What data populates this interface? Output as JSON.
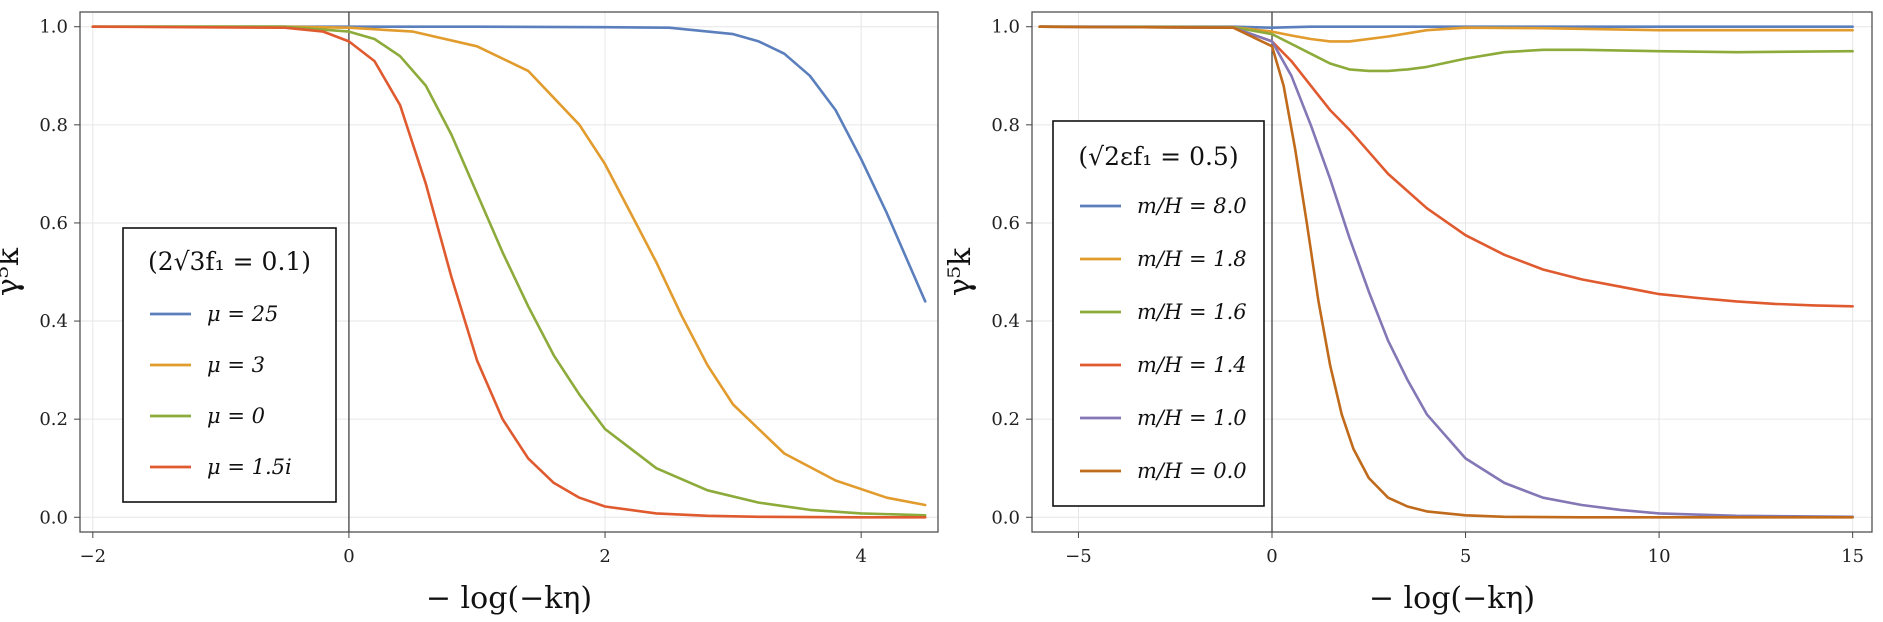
{
  "colors": {
    "blue": "#5b7fbd",
    "orange": "#e29b2d",
    "green": "#8cab3a",
    "red": "#e05a2f",
    "purple": "#8477b5",
    "brown": "#c06a1b",
    "grid": "#e6e6e6",
    "frame": "#444444"
  },
  "chart_data": [
    {
      "type": "line",
      "xlabel": "− log(−kη)",
      "ylabel": "γ⁵k",
      "xlim": [
        -2.1,
        4.6
      ],
      "ylim": [
        -0.03,
        1.03
      ],
      "xticks": [
        -2,
        0,
        2,
        4
      ],
      "xtick_labels": [
        "−2",
        "0",
        "2",
        "4"
      ],
      "yticks": [
        0.0,
        0.2,
        0.4,
        0.6,
        0.8,
        1.0
      ],
      "ytick_labels": [
        "0.0",
        "0.2",
        "0.4",
        "0.6",
        "0.8",
        "1.0"
      ],
      "vline_x": 0,
      "grid": true,
      "legend_title": "(2√3f₁ = 0.1)",
      "legend_position": "lower-left",
      "series": [
        {
          "name": "μ = 25",
          "color": "blue",
          "x": [
            -2,
            0,
            1,
            2,
            2.5,
            3,
            3.2,
            3.4,
            3.6,
            3.8,
            4.0,
            4.2,
            4.4,
            4.5
          ],
          "y": [
            1.0,
            1.0,
            1.0,
            0.999,
            0.998,
            0.985,
            0.97,
            0.945,
            0.9,
            0.83,
            0.73,
            0.62,
            0.5,
            0.44
          ]
        },
        {
          "name": "μ = 3",
          "color": "orange",
          "x": [
            -2,
            -0.5,
            0,
            0.5,
            1.0,
            1.4,
            1.8,
            2.0,
            2.2,
            2.4,
            2.6,
            2.8,
            3.0,
            3.4,
            3.8,
            4.2,
            4.5
          ],
          "y": [
            1.0,
            1.0,
            0.998,
            0.99,
            0.96,
            0.91,
            0.8,
            0.72,
            0.62,
            0.52,
            0.41,
            0.31,
            0.23,
            0.13,
            0.075,
            0.04,
            0.025
          ]
        },
        {
          "name": "μ = 0",
          "color": "green",
          "x": [
            -2,
            -0.5,
            0,
            0.2,
            0.4,
            0.6,
            0.8,
            1.0,
            1.2,
            1.4,
            1.6,
            1.8,
            2.0,
            2.4,
            2.8,
            3.2,
            3.6,
            4.0,
            4.5
          ],
          "y": [
            1.0,
            1.0,
            0.99,
            0.975,
            0.94,
            0.88,
            0.78,
            0.66,
            0.54,
            0.43,
            0.33,
            0.25,
            0.18,
            0.1,
            0.055,
            0.03,
            0.015,
            0.008,
            0.004
          ]
        },
        {
          "name": "μ = 1.5i",
          "color": "red",
          "x": [
            -2,
            -0.5,
            -0.2,
            0,
            0.2,
            0.4,
            0.6,
            0.8,
            1.0,
            1.2,
            1.4,
            1.6,
            1.8,
            2.0,
            2.4,
            2.8,
            3.2,
            4.0,
            4.5
          ],
          "y": [
            1.0,
            0.998,
            0.99,
            0.97,
            0.93,
            0.84,
            0.68,
            0.49,
            0.32,
            0.2,
            0.12,
            0.07,
            0.04,
            0.022,
            0.008,
            0.003,
            0.001,
            0.0,
            0.0
          ]
        }
      ]
    },
    {
      "type": "line",
      "xlabel": "− log(−kη)",
      "ylabel": "γ⁵k",
      "xlim": [
        -6.2,
        15.5
      ],
      "ylim": [
        -0.03,
        1.03
      ],
      "xticks": [
        -5,
        0,
        5,
        10,
        15
      ],
      "xtick_labels": [
        "−5",
        "0",
        "5",
        "10",
        "15"
      ],
      "yticks": [
        0.0,
        0.2,
        0.4,
        0.6,
        0.8,
        1.0
      ],
      "ytick_labels": [
        "0.0",
        "0.2",
        "0.4",
        "0.6",
        "0.8",
        "1.0"
      ],
      "vline_x": 0,
      "grid": true,
      "legend_title": "(√2εf₁ = 0.5)",
      "legend_position": "center-left",
      "series": [
        {
          "name": "m/H = 8.0",
          "color": "blue",
          "x": [
            -6,
            -1,
            0,
            1,
            15
          ],
          "y": [
            1.0,
            1.0,
            0.998,
            1.0,
            1.0
          ]
        },
        {
          "name": "m/H = 1.8",
          "color": "orange",
          "x": [
            -6,
            -1,
            0,
            0.5,
            1,
            1.5,
            2,
            3,
            4,
            5,
            7,
            10,
            13,
            15
          ],
          "y": [
            1.0,
            0.999,
            0.99,
            0.982,
            0.975,
            0.97,
            0.97,
            0.98,
            0.993,
            0.998,
            0.997,
            0.993,
            0.993,
            0.993
          ]
        },
        {
          "name": "m/H = 1.6",
          "color": "green",
          "x": [
            -6,
            -1,
            0,
            0.5,
            1,
            1.5,
            2,
            2.5,
            3,
            3.5,
            4,
            5,
            6,
            7,
            8,
            10,
            12,
            15
          ],
          "y": [
            1.0,
            0.999,
            0.985,
            0.965,
            0.945,
            0.925,
            0.913,
            0.91,
            0.91,
            0.913,
            0.918,
            0.935,
            0.948,
            0.953,
            0.953,
            0.95,
            0.948,
            0.95
          ]
        },
        {
          "name": "m/H = 1.4",
          "color": "red",
          "x": [
            -6,
            -1,
            0,
            0.5,
            1,
            1.5,
            2,
            2.5,
            3,
            4,
            5,
            6,
            7,
            8,
            9,
            10,
            11,
            12,
            13,
            14,
            15
          ],
          "y": [
            1.0,
            0.998,
            0.97,
            0.93,
            0.88,
            0.83,
            0.79,
            0.745,
            0.7,
            0.63,
            0.575,
            0.535,
            0.505,
            0.485,
            0.47,
            0.455,
            0.447,
            0.44,
            0.435,
            0.432,
            0.43
          ]
        },
        {
          "name": "m/H = 1.0",
          "color": "purple",
          "x": [
            -6,
            -1,
            0,
            0.5,
            1,
            1.5,
            2,
            2.5,
            3,
            3.5,
            4,
            5,
            6,
            7,
            8,
            9,
            10,
            12,
            15
          ],
          "y": [
            1.0,
            0.998,
            0.97,
            0.9,
            0.8,
            0.69,
            0.57,
            0.46,
            0.36,
            0.28,
            0.21,
            0.12,
            0.07,
            0.04,
            0.025,
            0.015,
            0.008,
            0.003,
            0.001
          ]
        },
        {
          "name": "m/H = 0.0",
          "color": "brown",
          "x": [
            -6,
            -1,
            0,
            0.3,
            0.6,
            0.9,
            1.2,
            1.5,
            1.8,
            2.1,
            2.5,
            3,
            3.5,
            4,
            5,
            6,
            8,
            10,
            15
          ],
          "y": [
            1.0,
            0.998,
            0.96,
            0.88,
            0.75,
            0.6,
            0.44,
            0.31,
            0.21,
            0.14,
            0.08,
            0.04,
            0.022,
            0.012,
            0.004,
            0.001,
            0.0,
            0.0,
            0.0
          ]
        }
      ]
    }
  ]
}
